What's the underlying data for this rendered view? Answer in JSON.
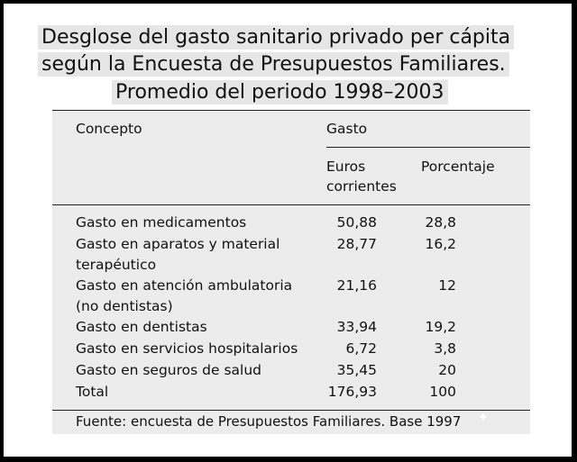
{
  "title": {
    "line1": "Desglose del gasto sanitario privado per cápita",
    "line2": "según la Encuesta de Presupuestos Familiares.",
    "line3": "Promedio del periodo 1998–2003"
  },
  "table": {
    "headers": {
      "concepto": "Concepto",
      "gasto": "Gasto",
      "euros_line1": "Euros",
      "euros_line2": "corrientes",
      "porcentaje": "Porcentaje"
    },
    "rows": [
      {
        "concepto_l1": "Gasto en medicamentos",
        "concepto_l2": "",
        "euros": "50,88",
        "porcentaje": "28,8"
      },
      {
        "concepto_l1": "Gasto en aparatos y material",
        "concepto_l2": "terapéutico",
        "euros": "28,77",
        "porcentaje": "16,2"
      },
      {
        "concepto_l1": "Gasto en atención ambulatoria",
        "concepto_l2": "(no dentistas)",
        "euros": "21,16",
        "porcentaje": "12"
      },
      {
        "concepto_l1": "Gasto en dentistas",
        "concepto_l2": "",
        "euros": "33,94",
        "porcentaje": "19,2"
      },
      {
        "concepto_l1": "Gasto en servicios hospitalarios",
        "concepto_l2": "",
        "euros": "6,72",
        "porcentaje": "3,8"
      },
      {
        "concepto_l1": "Gasto en seguros de salud",
        "concepto_l2": "",
        "euros": "35,45",
        "porcentaje": "20"
      },
      {
        "concepto_l1": "Total",
        "concepto_l2": "",
        "euros": "176,93",
        "porcentaje": "100"
      }
    ]
  },
  "source": "Fuente: encuesta de Presupuestos Familiares. Base 1997",
  "colors": {
    "title_bg": "#e6e6e6",
    "panel_bg": "#ececec",
    "border": "#000000"
  }
}
